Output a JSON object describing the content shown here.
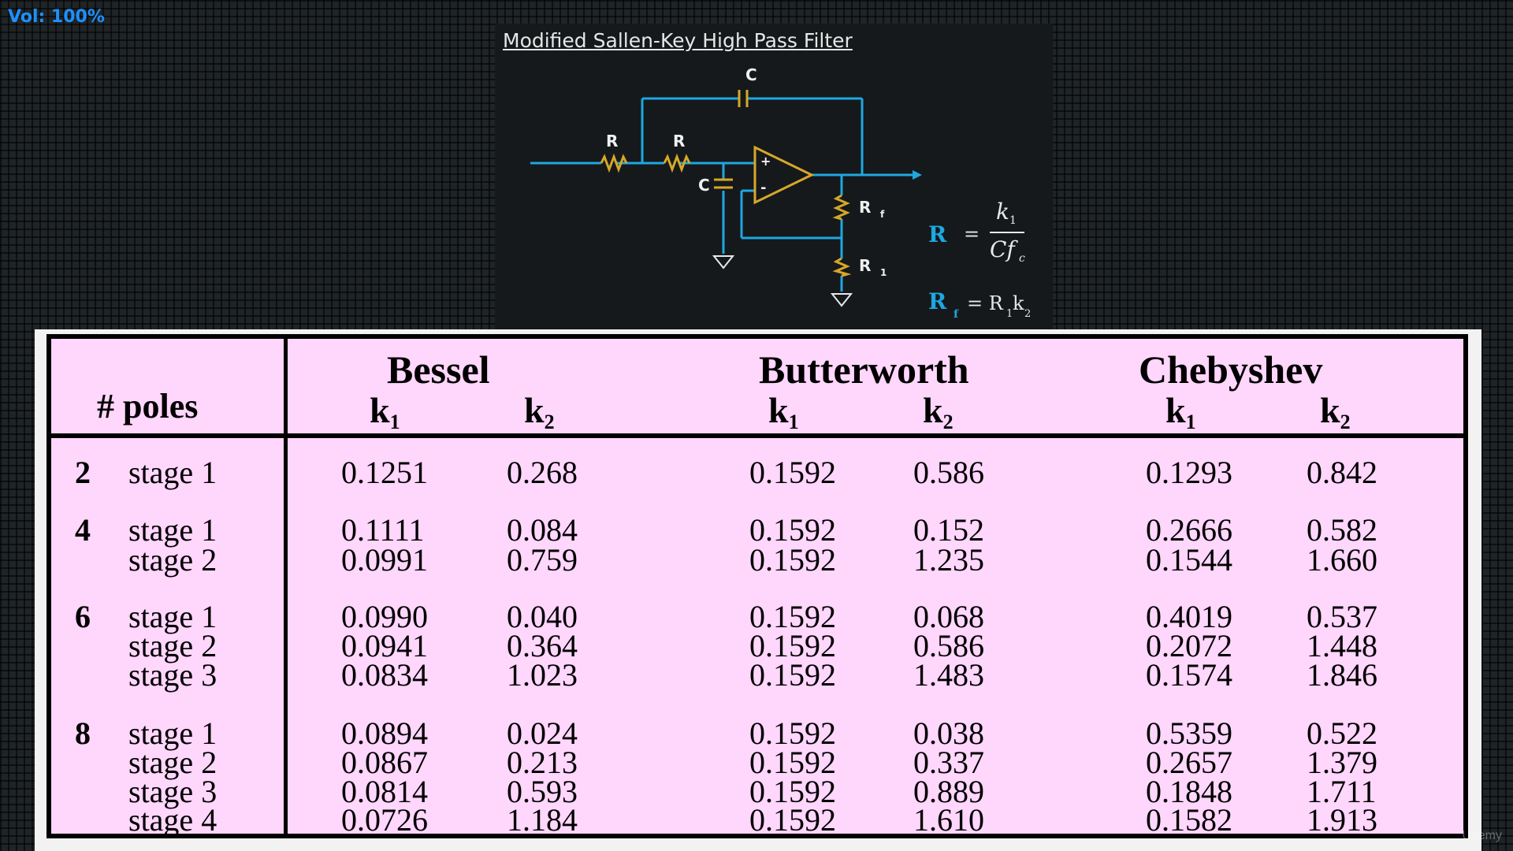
{
  "overlay": {
    "volume": "Vol: 100%"
  },
  "diagram": {
    "title": "Modified Sallen-Key High Pass Filter",
    "labels": {
      "c_top": "C",
      "r1": "R",
      "r2": "R",
      "c_left": "C",
      "rf": "R",
      "rf_sub": "f",
      "r_one": "R",
      "r_one_sub": "1"
    },
    "equation1": {
      "lhs": "R",
      "eq": "=",
      "num": "k",
      "num_sub": "1",
      "den": "Cf",
      "den_sub": "c"
    },
    "equation2": {
      "lhs": "R",
      "lhs_sub": "f",
      "rhs": "= R",
      "rhs_sub1": "1",
      "rhs_k": "k",
      "rhs_sub2": "2"
    },
    "colors": {
      "wire": "#1fa7e0",
      "component": "#d6a72a"
    }
  },
  "table": {
    "poles_header": "# poles",
    "families": [
      "Bessel",
      "Butterworth",
      "Chebyshev"
    ],
    "k_labels": [
      "k",
      "k"
    ],
    "k_subs": [
      "1",
      "2"
    ],
    "rows": [
      {
        "pole": "2",
        "stage": "stage 1",
        "bessel_k1": "0.1251",
        "bessel_k2": "0.268",
        "butter_k1": "0.1592",
        "butter_k2": "0.586",
        "cheby_k1": "0.1293",
        "cheby_k2": "0.842"
      },
      {
        "pole": "4",
        "stage": "stage 1",
        "bessel_k1": "0.1111",
        "bessel_k2": "0.084",
        "butter_k1": "0.1592",
        "butter_k2": "0.152",
        "cheby_k1": "0.2666",
        "cheby_k2": "0.582"
      },
      {
        "pole": "",
        "stage": "stage 2",
        "bessel_k1": "0.0991",
        "bessel_k2": "0.759",
        "butter_k1": "0.1592",
        "butter_k2": "1.235",
        "cheby_k1": "0.1544",
        "cheby_k2": "1.660"
      },
      {
        "pole": "6",
        "stage": "stage 1",
        "bessel_k1": "0.0990",
        "bessel_k2": "0.040",
        "butter_k1": "0.1592",
        "butter_k2": "0.068",
        "cheby_k1": "0.4019",
        "cheby_k2": "0.537"
      },
      {
        "pole": "",
        "stage": "stage 2",
        "bessel_k1": "0.0941",
        "bessel_k2": "0.364",
        "butter_k1": "0.1592",
        "butter_k2": "0.586",
        "cheby_k1": "0.2072",
        "cheby_k2": "1.448"
      },
      {
        "pole": "",
        "stage": "stage 3",
        "bessel_k1": "0.0834",
        "bessel_k2": "1.023",
        "butter_k1": "0.1592",
        "butter_k2": "1.483",
        "cheby_k1": "0.1574",
        "cheby_k2": "1.846"
      },
      {
        "pole": "8",
        "stage": "stage 1",
        "bessel_k1": "0.0894",
        "bessel_k2": "0.024",
        "butter_k1": "0.1592",
        "butter_k2": "0.038",
        "cheby_k1": "0.5359",
        "cheby_k2": "0.522"
      },
      {
        "pole": "",
        "stage": "stage 2",
        "bessel_k1": "0.0867",
        "bessel_k2": "0.213",
        "butter_k1": "0.1592",
        "butter_k2": "0.337",
        "cheby_k1": "0.2657",
        "cheby_k2": "1.379"
      },
      {
        "pole": "",
        "stage": "stage 3",
        "bessel_k1": "0.0814",
        "bessel_k2": "0.593",
        "butter_k1": "0.1592",
        "butter_k2": "0.889",
        "cheby_k1": "0.1848",
        "cheby_k2": "1.711"
      },
      {
        "pole": "",
        "stage": "stage 4",
        "bessel_k1": "0.0726",
        "bessel_k2": "1.184",
        "butter_k1": "0.1592",
        "butter_k2": "1.610",
        "cheby_k1": "0.1582",
        "cheby_k2": "1.913"
      }
    ]
  },
  "watermark": "Udemy"
}
